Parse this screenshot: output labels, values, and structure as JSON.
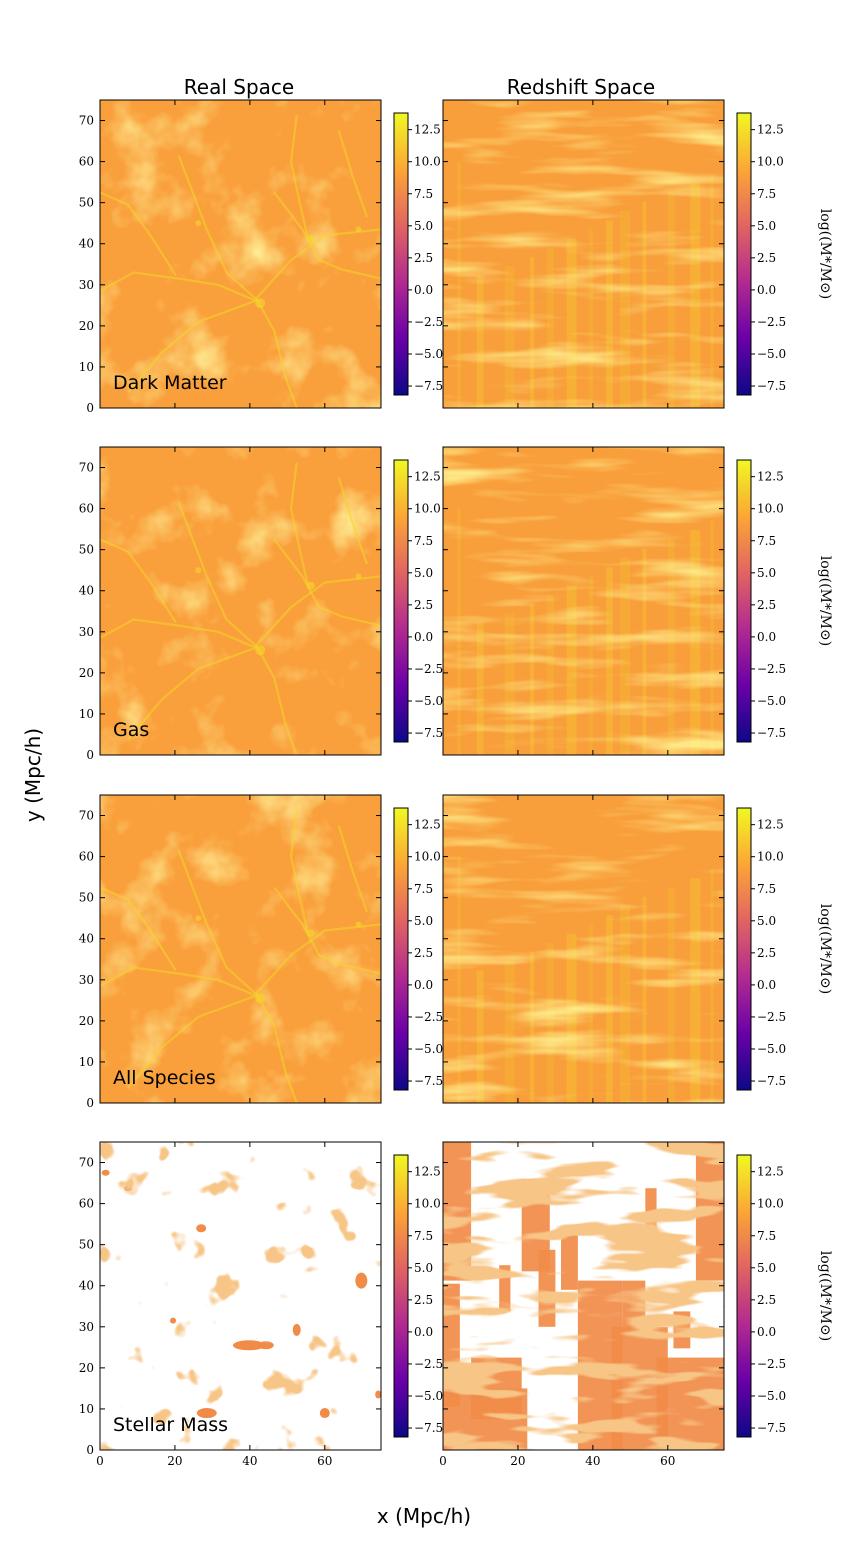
{
  "figure": {
    "xlabel": "x (Mpc/h)",
    "ylabel": "y (Mpc/h)",
    "column_titles": [
      "Real Space",
      "Redshift Space"
    ]
  },
  "chart_data": {
    "type": "heatmap",
    "colormap": "plasma",
    "colormap_stops": [
      "#0d0887",
      "#6a00a8",
      "#b12a90",
      "#e16462",
      "#fca636",
      "#f0f921"
    ],
    "xlim": [
      0,
      75
    ],
    "ylim": [
      0,
      75
    ],
    "x_ticks": [
      0,
      20,
      40,
      60
    ],
    "y_ticks": [
      0,
      10,
      20,
      30,
      40,
      50,
      60,
      70
    ],
    "x_tick_labels": [
      "0",
      "20",
      "40",
      "60"
    ],
    "y_tick_labels": [
      "0",
      "10",
      "20",
      "30",
      "40",
      "50",
      "60",
      "70"
    ],
    "colorbar": {
      "range": [
        -8.2,
        13.8
      ],
      "ticks": [
        -7.5,
        -5.0,
        -2.5,
        0.0,
        2.5,
        5.0,
        7.5,
        10.0,
        12.5
      ],
      "tick_labels": [
        "−7.5",
        "−5.0",
        "−2.5",
        "0.0",
        "2.5",
        "5.0",
        "7.5",
        "10.0",
        "12.5"
      ],
      "label": "log((M*/M⊙)"
    },
    "rows": [
      {
        "species": "Dark Matter",
        "real_space_level": 8.9,
        "redshift_space_level": 9.3
      },
      {
        "species": "Gas",
        "real_space_level": 8.9,
        "redshift_space_level": 9.3
      },
      {
        "species": "All Species",
        "real_space_level": 8.9,
        "redshift_space_level": 9.3
      },
      {
        "species": "Stellar Mass",
        "real_space_level": 7.6,
        "redshift_space_level": 7.6
      }
    ]
  }
}
